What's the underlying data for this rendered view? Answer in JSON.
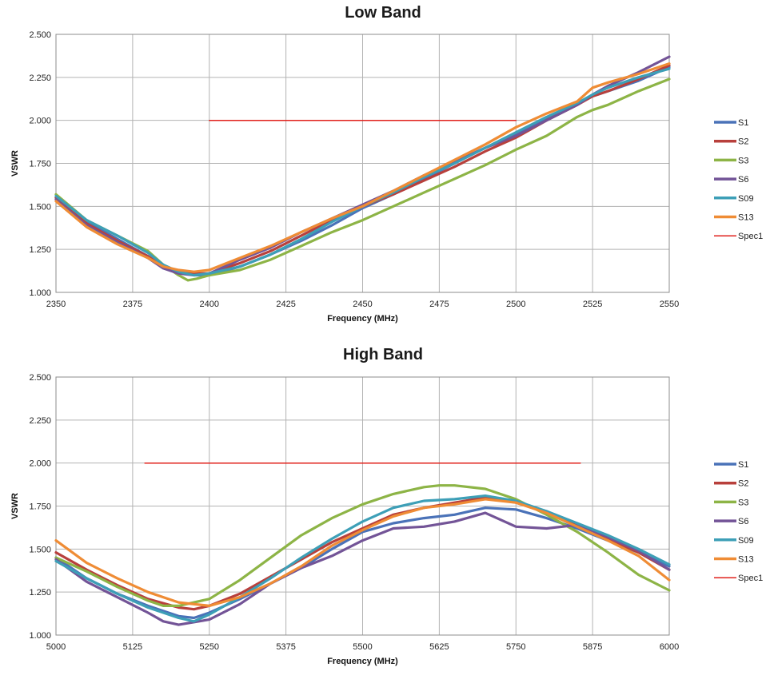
{
  "colors": {
    "S1": "#4a72b8",
    "S2": "#b8403c",
    "S3": "#8db446",
    "S6": "#735497",
    "S09": "#3d9fb7",
    "S13": "#ef8c35",
    "Spec1": "#e0201b",
    "grid": "#b3b3b3"
  },
  "chart_data": [
    {
      "type": "line",
      "title": "Low Band",
      "xlabel": "Frequency (MHz)",
      "ylabel": "VSWR",
      "xlim": [
        2350,
        2550
      ],
      "ylim": [
        1.0,
        2.5
      ],
      "x_ticks": [
        "2350",
        "2375",
        "2400",
        "2425",
        "2450",
        "2475",
        "2500",
        "2525",
        "2550"
      ],
      "y_ticks": [
        "1.000",
        "1.250",
        "1.500",
        "1.750",
        "2.000",
        "2.250",
        "2.500"
      ],
      "grid": true,
      "legend_position": "right",
      "series": [
        {
          "name": "S1",
          "x": [
            2350,
            2360,
            2370,
            2380,
            2385,
            2390,
            2395,
            2400,
            2410,
            2420,
            2430,
            2440,
            2450,
            2460,
            2470,
            2480,
            2490,
            2500,
            2510,
            2520,
            2525,
            2530,
            2540,
            2550
          ],
          "y": [
            1.55,
            1.41,
            1.31,
            1.21,
            1.15,
            1.12,
            1.1,
            1.1,
            1.15,
            1.22,
            1.3,
            1.39,
            1.49,
            1.57,
            1.66,
            1.75,
            1.84,
            1.92,
            2.01,
            2.1,
            2.14,
            2.17,
            2.23,
            2.31
          ]
        },
        {
          "name": "S2",
          "x": [
            2350,
            2360,
            2370,
            2380,
            2385,
            2390,
            2395,
            2400,
            2410,
            2420,
            2430,
            2440,
            2450,
            2460,
            2470,
            2480,
            2490,
            2500,
            2510,
            2520,
            2525,
            2530,
            2540,
            2550
          ],
          "y": [
            1.55,
            1.4,
            1.3,
            1.21,
            1.15,
            1.12,
            1.11,
            1.11,
            1.17,
            1.24,
            1.33,
            1.42,
            1.5,
            1.57,
            1.65,
            1.73,
            1.82,
            1.9,
            2.0,
            2.09,
            2.14,
            2.17,
            2.24,
            2.32
          ]
        },
        {
          "name": "S3",
          "x": [
            2350,
            2360,
            2370,
            2380,
            2385,
            2390,
            2393,
            2396,
            2400,
            2410,
            2420,
            2430,
            2440,
            2450,
            2460,
            2470,
            2480,
            2490,
            2500,
            2510,
            2520,
            2525,
            2530,
            2540,
            2550
          ],
          "y": [
            1.57,
            1.42,
            1.33,
            1.24,
            1.16,
            1.1,
            1.07,
            1.08,
            1.1,
            1.13,
            1.19,
            1.27,
            1.35,
            1.42,
            1.5,
            1.58,
            1.66,
            1.74,
            1.83,
            1.91,
            2.02,
            2.06,
            2.09,
            2.17,
            2.24
          ]
        },
        {
          "name": "S6",
          "x": [
            2350,
            2360,
            2370,
            2380,
            2385,
            2390,
            2395,
            2400,
            2410,
            2420,
            2430,
            2440,
            2450,
            2460,
            2470,
            2480,
            2490,
            2500,
            2510,
            2520,
            2525,
            2530,
            2540,
            2550
          ],
          "y": [
            1.54,
            1.39,
            1.29,
            1.2,
            1.14,
            1.11,
            1.1,
            1.11,
            1.19,
            1.26,
            1.35,
            1.43,
            1.51,
            1.59,
            1.68,
            1.76,
            1.84,
            1.91,
            2.0,
            2.09,
            2.15,
            2.2,
            2.28,
            2.37
          ]
        },
        {
          "name": "S09",
          "x": [
            2350,
            2360,
            2370,
            2380,
            2385,
            2390,
            2395,
            2400,
            2410,
            2420,
            2430,
            2440,
            2450,
            2460,
            2470,
            2480,
            2490,
            2500,
            2510,
            2520,
            2525,
            2530,
            2540,
            2550
          ],
          "y": [
            1.56,
            1.42,
            1.33,
            1.23,
            1.16,
            1.12,
            1.1,
            1.11,
            1.15,
            1.22,
            1.31,
            1.41,
            1.5,
            1.58,
            1.67,
            1.75,
            1.84,
            1.93,
            2.02,
            2.1,
            2.15,
            2.19,
            2.25,
            2.3
          ]
        },
        {
          "name": "S13",
          "x": [
            2350,
            2360,
            2370,
            2380,
            2385,
            2390,
            2395,
            2400,
            2410,
            2420,
            2430,
            2440,
            2450,
            2460,
            2470,
            2480,
            2490,
            2500,
            2510,
            2520,
            2525,
            2530,
            2540,
            2550
          ],
          "y": [
            1.53,
            1.38,
            1.28,
            1.2,
            1.15,
            1.13,
            1.12,
            1.13,
            1.2,
            1.27,
            1.35,
            1.43,
            1.5,
            1.59,
            1.68,
            1.77,
            1.86,
            1.96,
            2.04,
            2.11,
            2.19,
            2.22,
            2.27,
            2.33
          ]
        },
        {
          "name": "Spec1",
          "x": [
            2400,
            2500
          ],
          "y": [
            2.0,
            2.0
          ]
        }
      ]
    },
    {
      "type": "line",
      "title": "High Band",
      "xlabel": "Frequency (MHz)",
      "ylabel": "VSWR",
      "xlim": [
        5000,
        6000
      ],
      "ylim": [
        1.0,
        2.5
      ],
      "x_ticks": [
        "5000",
        "5125",
        "5250",
        "5375",
        "5500",
        "5625",
        "5750",
        "5875",
        "6000"
      ],
      "y_ticks": [
        "1.000",
        "1.250",
        "1.500",
        "1.750",
        "2.000",
        "2.250",
        "2.500"
      ],
      "grid": true,
      "legend_position": "right",
      "series": [
        {
          "name": "S1",
          "x": [
            5000,
            5050,
            5100,
            5150,
            5200,
            5225,
            5250,
            5300,
            5350,
            5400,
            5450,
            5500,
            5550,
            5600,
            5650,
            5700,
            5750,
            5800,
            5850,
            5900,
            5950,
            6000
          ],
          "y": [
            1.45,
            1.33,
            1.24,
            1.17,
            1.11,
            1.1,
            1.13,
            1.21,
            1.3,
            1.39,
            1.5,
            1.6,
            1.65,
            1.68,
            1.7,
            1.74,
            1.73,
            1.68,
            1.62,
            1.55,
            1.48,
            1.4
          ]
        },
        {
          "name": "S2",
          "x": [
            5000,
            5050,
            5100,
            5150,
            5200,
            5225,
            5250,
            5300,
            5350,
            5400,
            5450,
            5500,
            5550,
            5600,
            5650,
            5700,
            5750,
            5800,
            5850,
            5900,
            5950,
            6000
          ],
          "y": [
            1.48,
            1.38,
            1.29,
            1.21,
            1.16,
            1.15,
            1.17,
            1.24,
            1.34,
            1.44,
            1.54,
            1.62,
            1.7,
            1.74,
            1.77,
            1.8,
            1.77,
            1.72,
            1.64,
            1.56,
            1.48,
            1.38
          ]
        },
        {
          "name": "S3",
          "x": [
            5000,
            5050,
            5100,
            5150,
            5175,
            5200,
            5250,
            5300,
            5350,
            5400,
            5450,
            5500,
            5550,
            5600,
            5625,
            5650,
            5700,
            5750,
            5800,
            5850,
            5900,
            5950,
            6000
          ],
          "y": [
            1.45,
            1.37,
            1.28,
            1.2,
            1.17,
            1.17,
            1.21,
            1.32,
            1.45,
            1.58,
            1.68,
            1.76,
            1.82,
            1.86,
            1.87,
            1.87,
            1.85,
            1.79,
            1.7,
            1.6,
            1.48,
            1.35,
            1.26
          ]
        },
        {
          "name": "S6",
          "x": [
            5000,
            5050,
            5100,
            5150,
            5175,
            5200,
            5250,
            5300,
            5350,
            5400,
            5450,
            5500,
            5550,
            5600,
            5650,
            5700,
            5750,
            5800,
            5850,
            5900,
            5950,
            6000
          ],
          "y": [
            1.44,
            1.31,
            1.22,
            1.13,
            1.08,
            1.06,
            1.09,
            1.18,
            1.3,
            1.39,
            1.46,
            1.55,
            1.62,
            1.63,
            1.66,
            1.71,
            1.63,
            1.62,
            1.64,
            1.57,
            1.49,
            1.38
          ]
        },
        {
          "name": "S09",
          "x": [
            5000,
            5050,
            5100,
            5150,
            5200,
            5225,
            5250,
            5300,
            5350,
            5400,
            5450,
            5500,
            5550,
            5600,
            5650,
            5700,
            5750,
            5800,
            5850,
            5900,
            5950,
            6000
          ],
          "y": [
            1.43,
            1.33,
            1.24,
            1.16,
            1.1,
            1.08,
            1.12,
            1.22,
            1.33,
            1.45,
            1.56,
            1.66,
            1.74,
            1.78,
            1.79,
            1.81,
            1.78,
            1.72,
            1.65,
            1.58,
            1.5,
            1.41
          ]
        },
        {
          "name": "S13",
          "x": [
            5000,
            5050,
            5100,
            5150,
            5200,
            5250,
            5300,
            5350,
            5400,
            5450,
            5500,
            5550,
            5600,
            5650,
            5700,
            5750,
            5800,
            5850,
            5900,
            5950,
            6000
          ],
          "y": [
            1.55,
            1.42,
            1.33,
            1.25,
            1.19,
            1.17,
            1.22,
            1.3,
            1.4,
            1.52,
            1.61,
            1.69,
            1.74,
            1.76,
            1.79,
            1.77,
            1.71,
            1.63,
            1.55,
            1.46,
            1.32
          ]
        },
        {
          "name": "Spec1",
          "x": [
            5145,
            5855
          ],
          "y": [
            2.0,
            2.0
          ]
        }
      ]
    }
  ]
}
